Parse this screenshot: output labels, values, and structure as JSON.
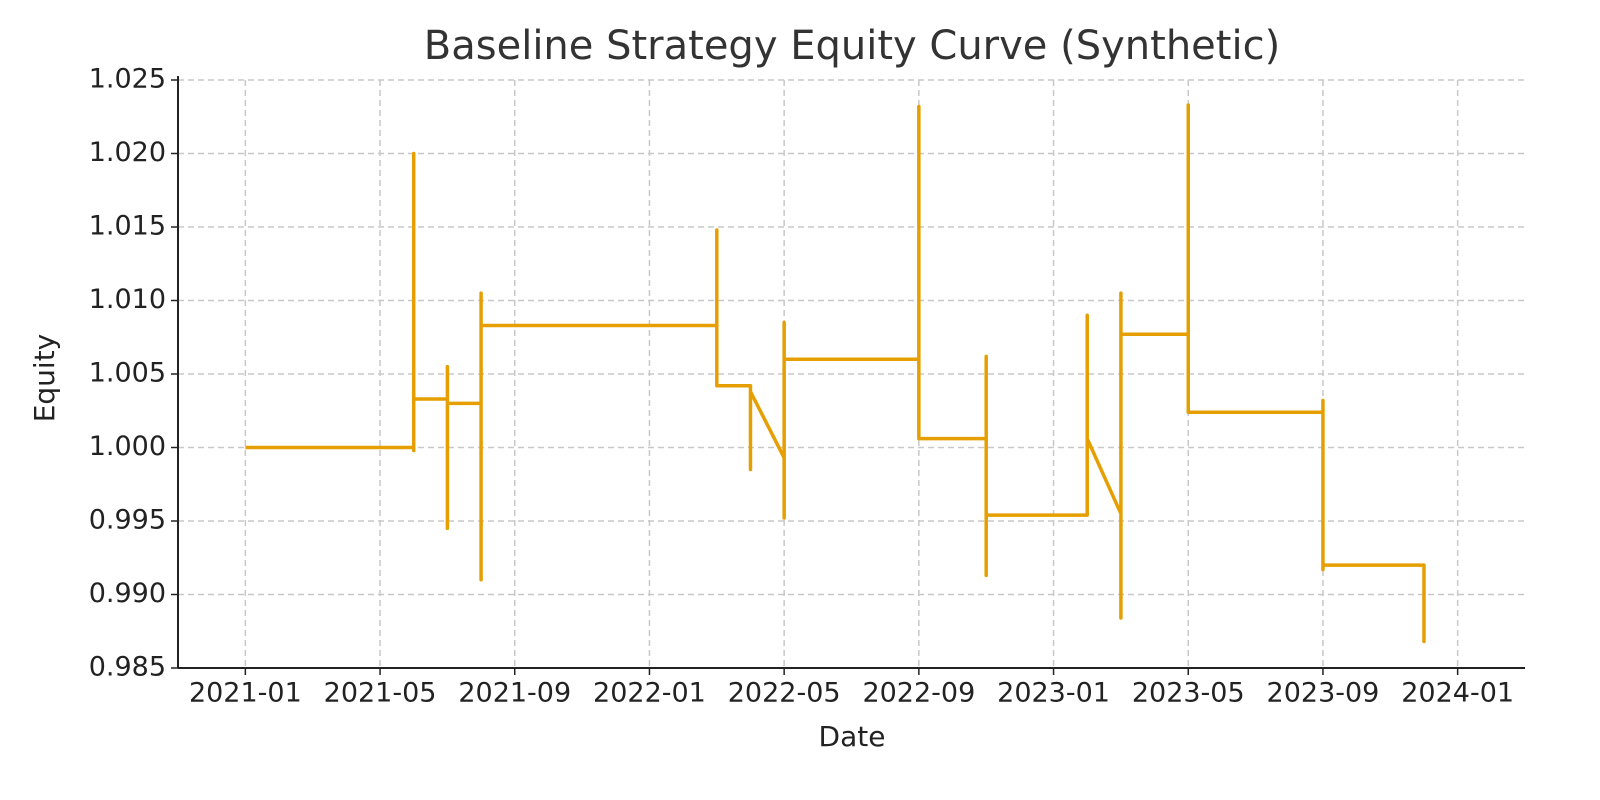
{
  "chart_data": {
    "type": "line",
    "title": "Baseline Strategy Equity Curve (Synthetic)",
    "x_label": "Date",
    "y_label": "Equity",
    "x": [
      "2021-01",
      "2021-06",
      "2021-06",
      "2021-06",
      "2021-06",
      "2021-06",
      "2021-06",
      "2021-07",
      "2021-07",
      "2021-07",
      "2021-07",
      "2021-07",
      "2021-07",
      "2021-08",
      "2021-08",
      "2021-08",
      "2021-08",
      "2021-08",
      "2022-03",
      "2022-03",
      "2022-03",
      "2022-03",
      "2022-04",
      "2022-04",
      "2022-04",
      "2022-04",
      "2022-05",
      "2022-05",
      "2022-05",
      "2022-05",
      "2022-05",
      "2022-05",
      "2022-05",
      "2022-05",
      "2022-09",
      "2022-09",
      "2022-09",
      "2022-09",
      "2022-09",
      "2022-09",
      "2022-09",
      "2022-09",
      "2022-09",
      "2022-09",
      "2022-11",
      "2022-11",
      "2022-11",
      "2022-11",
      "2022-11",
      "2023-02",
      "2023-02",
      "2023-02",
      "2023-02",
      "2023-03",
      "2023-03",
      "2023-03",
      "2023-03",
      "2023-03",
      "2023-05",
      "2023-05",
      "2023-05",
      "2023-05",
      "2023-05",
      "2023-05",
      "2023-05",
      "2023-09",
      "2023-09",
      "2023-09",
      "2023-09",
      "2023-09",
      "2023-12",
      "2023-12",
      "2023-12",
      "2023-12"
    ],
    "series": [
      {
        "name": "Equity",
        "color": "#e69f00",
        "values": [
          1.0,
          1.0,
          1.02,
          1.0115,
          1.0065,
          0.9998,
          1.0033,
          1.0033,
          1.0005,
          1.0055,
          0.9945,
          1.0042,
          1.003,
          1.003,
          0.991,
          1.0105,
          0.9995,
          1.0083,
          1.0083,
          1.0148,
          1.006,
          1.0042,
          1.0042,
          0.9985,
          1.0028,
          1.0038,
          0.9993,
          1.0048,
          1.0015,
          0.9952,
          0.9975,
          1.0085,
          1.004,
          1.006,
          1.006,
          1.0138,
          1.0095,
          1.0232,
          1.0168,
          1.0178,
          1.0082,
          1.0025,
          1.0103,
          1.0006,
          1.0006,
          1.0062,
          0.9913,
          0.9987,
          0.9954,
          0.9954,
          1.009,
          0.9975,
          1.0006,
          0.9955,
          0.9884,
          1.0103,
          1.0105,
          1.0077,
          1.0077,
          1.0148,
          1.0208,
          1.0233,
          1.0135,
          1.0088,
          1.0024,
          1.0024,
          1.0032,
          0.9917,
          0.999,
          0.992,
          0.992,
          0.9868,
          0.9918,
          0.9872
        ]
      }
    ],
    "xlim": [
      "2020-11",
      "2024-03"
    ],
    "xticks": [
      "2021-01",
      "2021-05",
      "2021-09",
      "2022-01",
      "2022-05",
      "2022-09",
      "2023-01",
      "2023-05",
      "2023-09",
      "2024-01"
    ],
    "ylim": [
      0.985,
      1.025
    ],
    "yticks": [
      0.985,
      {
        "value": 0.99,
        "label": "0.990"
      },
      0.995,
      {
        "value": 1,
        "label": "1.000"
      },
      1.005,
      {
        "value": 1.01,
        "label": "1.010"
      },
      1.015,
      {
        "value": 1.02,
        "label": "1.020"
      },
      1.025
    ],
    "grid": true
  }
}
